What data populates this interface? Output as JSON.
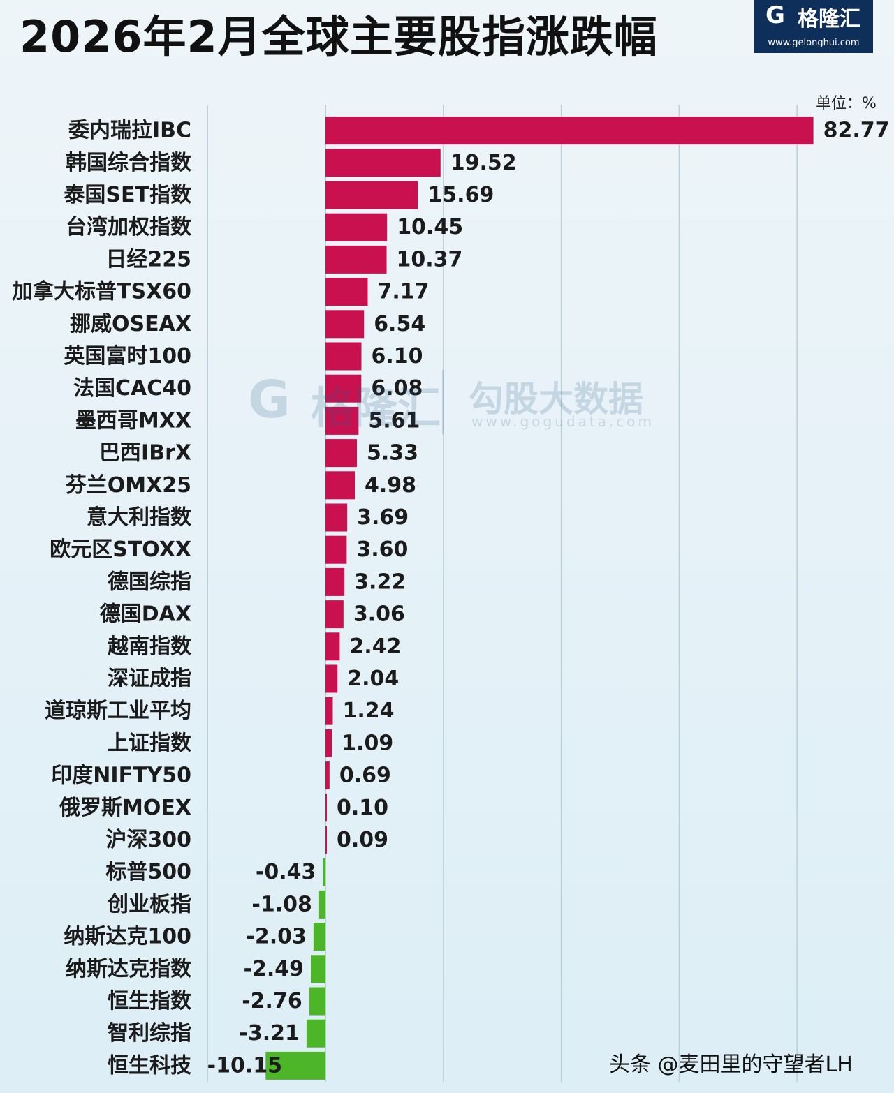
{
  "header": {
    "title": "2026年2月全球主要股指涨跌幅",
    "logo": {
      "mark": "G",
      "name": "格隆汇",
      "url": "www.gelonghui.com"
    },
    "unit": "单位：%"
  },
  "watermark": {
    "mark": "G",
    "name": "格隆汇",
    "title": "勾股大数据",
    "url": "www.gogudata.com"
  },
  "footer": {
    "credit": "头条 @麦田里的守望者LH"
  },
  "colors": {
    "positive": "#c8114e",
    "negative": "#4cb528",
    "grid": "#bcd0dc"
  },
  "chart_data": {
    "type": "bar",
    "orientation": "horizontal",
    "title": "2026年2月全球主要股指涨跌幅",
    "unit": "单位：%",
    "categories": [
      "委内瑞拉IBC",
      "韩国综合指数",
      "泰国SET指数",
      "台湾加权指数",
      "日经225",
      "加拿大标普TSX60",
      "挪威OSEAX",
      "英国富时100",
      "法国CAC40",
      "墨西哥MXX",
      "巴西IBrX",
      "芬兰OMX25",
      "意大利指数",
      "欧元区STOXX",
      "德国综指",
      "德国DAX",
      "越南指数",
      "深证成指",
      "道琼斯工业平均",
      "上证指数",
      "印度NIFTY50",
      "俄罗斯MOEX",
      "沪深300",
      "标普500",
      "创业板指",
      "纳斯达克100",
      "纳斯达克指数",
      "恒生指数",
      "智利综指",
      "恒生科技"
    ],
    "values": [
      82.77,
      19.52,
      15.69,
      10.45,
      10.37,
      7.17,
      6.54,
      6.1,
      6.08,
      5.61,
      5.33,
      4.98,
      3.69,
      3.6,
      3.22,
      3.06,
      2.42,
      2.04,
      1.24,
      1.09,
      0.69,
      0.1,
      0.09,
      -0.43,
      -1.08,
      -2.03,
      -2.49,
      -2.76,
      -3.21,
      -10.15
    ],
    "value_labels": [
      "82.77",
      "19.52",
      "15.69",
      "10.45",
      "10.37",
      "7.17",
      "6.54",
      "6.10",
      "6.08",
      "5.61",
      "5.33",
      "4.98",
      "3.69",
      "3.60",
      "3.22",
      "3.06",
      "2.42",
      "2.04",
      "1.24",
      "1.09",
      "0.69",
      "0.10",
      "0.09",
      "-0.43",
      "-1.08",
      "-2.03",
      "-2.49",
      "-2.76",
      "-3.21",
      "-10.15"
    ],
    "xlim": [
      -20,
      80
    ],
    "grid": true,
    "legend": "none"
  }
}
